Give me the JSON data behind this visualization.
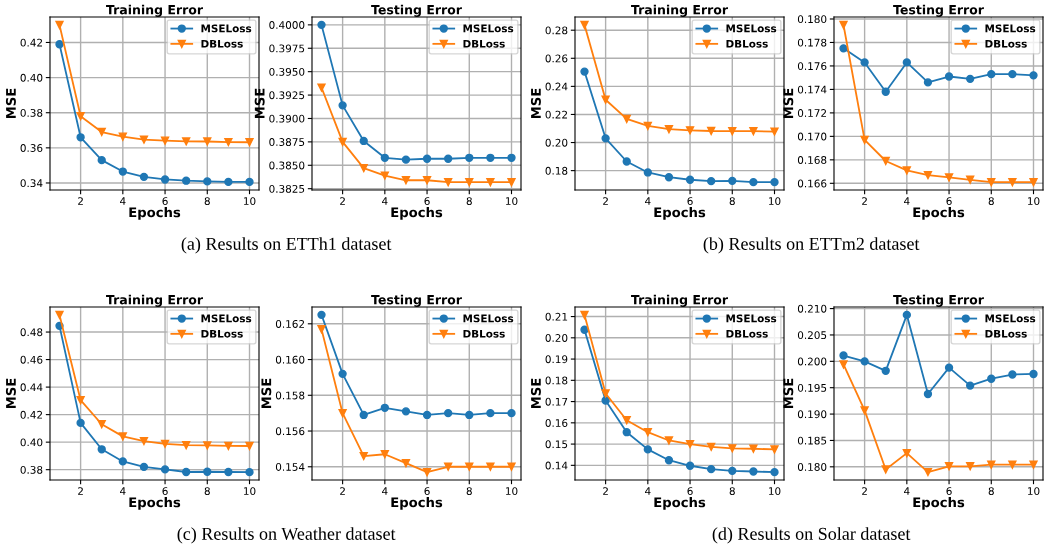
{
  "chart_data": [
    {
      "type": "line",
      "title": "Training Error",
      "xlabel": "Epochs",
      "ylabel": "MSE",
      "x": [
        1,
        2,
        3,
        4,
        5,
        6,
        7,
        8,
        9,
        10
      ],
      "xlim": [
        0.55,
        10.45
      ],
      "xticks": [
        2,
        4,
        6,
        8,
        10
      ],
      "ylim": [
        0.336,
        0.4345
      ],
      "yticks": [
        {
          "value": 0.34,
          "label": "0.34"
        },
        {
          "value": 0.36,
          "label": "0.36"
        },
        {
          "value": 0.38,
          "label": "0.38"
        },
        {
          "value": 0.4,
          "label": "0.40"
        },
        {
          "value": 0.42,
          "label": "0.42"
        }
      ],
      "grid": true,
      "legend": "top right",
      "annotations": [
        "(a) Results on ETTh1 dataset"
      ],
      "series": [
        {
          "name": "MSELoss",
          "color": "#1f77b4",
          "marker": "circle",
          "values": [
            0.419,
            0.366,
            0.353,
            0.3465,
            0.3435,
            0.342,
            0.3413,
            0.3409,
            0.3406,
            0.3406
          ]
        },
        {
          "name": "DBLoss",
          "color": "#ff7f0e",
          "marker": "triangle",
          "values": [
            0.43,
            0.378,
            0.369,
            0.3664,
            0.3647,
            0.3641,
            0.3637,
            0.3636,
            0.3633,
            0.3632
          ]
        }
      ]
    },
    {
      "type": "line",
      "title": "Testing Error",
      "xlabel": "Epochs",
      "ylabel": "MSE",
      "x": [
        1,
        2,
        3,
        4,
        5,
        6,
        7,
        8,
        9,
        10
      ],
      "xlim": [
        0.55,
        10.45
      ],
      "xticks": [
        2,
        4,
        6,
        8,
        10
      ],
      "ylim": [
        0.38236,
        0.40084
      ],
      "yticks": [
        {
          "value": 0.3825,
          "label": "0.3825"
        },
        {
          "value": 0.385,
          "label": "0.3850"
        },
        {
          "value": 0.3875,
          "label": "0.3875"
        },
        {
          "value": 0.39,
          "label": "0.3900"
        },
        {
          "value": 0.3925,
          "label": "0.3925"
        },
        {
          "value": 0.395,
          "label": "0.3950"
        },
        {
          "value": 0.3975,
          "label": "0.3975"
        },
        {
          "value": 0.4,
          "label": "0.4000"
        }
      ],
      "grid": true,
      "legend": "top right",
      "series": [
        {
          "name": "MSELoss",
          "color": "#1f77b4",
          "marker": "circle",
          "values": [
            0.4,
            0.3914,
            0.3876,
            0.3858,
            0.3856,
            0.3857,
            0.3857,
            0.3858,
            0.3858,
            0.3858
          ]
        },
        {
          "name": "DBLoss",
          "color": "#ff7f0e",
          "marker": "triangle",
          "values": [
            0.3933,
            0.3875,
            0.3847,
            0.3839,
            0.3834,
            0.3834,
            0.3832,
            0.3832,
            0.3832,
            0.3832
          ]
        }
      ]
    },
    {
      "type": "line",
      "title": "Training Error",
      "xlabel": "Epochs",
      "ylabel": "MSE",
      "x": [
        1,
        2,
        3,
        4,
        5,
        6,
        7,
        8,
        9,
        10
      ],
      "xlim": [
        0.55,
        10.45
      ],
      "xticks": [
        2,
        4,
        6,
        8,
        10
      ],
      "ylim": [
        0.1662,
        0.2894
      ],
      "yticks": [
        {
          "value": 0.18,
          "label": "0.18"
        },
        {
          "value": 0.2,
          "label": "0.20"
        },
        {
          "value": 0.22,
          "label": "0.22"
        },
        {
          "value": 0.24,
          "label": "0.24"
        },
        {
          "value": 0.26,
          "label": "0.26"
        },
        {
          "value": 0.28,
          "label": "0.28"
        }
      ],
      "grid": true,
      "legend": "top right",
      "annotations": [
        "(b) Results on ETTm2 dataset"
      ],
      "series": [
        {
          "name": "MSELoss",
          "color": "#1f77b4",
          "marker": "circle",
          "values": [
            0.2505,
            0.203,
            0.1865,
            0.1787,
            0.1753,
            0.1735,
            0.1725,
            0.1727,
            0.1718,
            0.1718
          ]
        },
        {
          "name": "DBLoss",
          "color": "#ff7f0e",
          "marker": "triangle",
          "values": [
            0.2838,
            0.2305,
            0.2168,
            0.2118,
            0.2095,
            0.2087,
            0.2082,
            0.2081,
            0.2081,
            0.2078
          ]
        }
      ]
    },
    {
      "type": "line",
      "title": "Testing Error",
      "xlabel": "Epochs",
      "ylabel": "MSE",
      "x": [
        1,
        2,
        3,
        4,
        5,
        6,
        7,
        8,
        9,
        10
      ],
      "xlim": [
        0.55,
        10.45
      ],
      "xticks": [
        2,
        4,
        6,
        8,
        10
      ],
      "ylim": [
        0.16543,
        0.18017
      ],
      "yticks": [
        {
          "value": 0.166,
          "label": "0.166"
        },
        {
          "value": 0.168,
          "label": "0.168"
        },
        {
          "value": 0.17,
          "label": "0.170"
        },
        {
          "value": 0.172,
          "label": "0.172"
        },
        {
          "value": 0.174,
          "label": "0.174"
        },
        {
          "value": 0.176,
          "label": "0.176"
        },
        {
          "value": 0.178,
          "label": "0.178"
        },
        {
          "value": 0.18,
          "label": "0.180"
        }
      ],
      "grid": true,
      "legend": "top right",
      "series": [
        {
          "name": "MSELoss",
          "color": "#1f77b4",
          "marker": "circle",
          "values": [
            0.1775,
            0.1763,
            0.1738,
            0.1763,
            0.1746,
            0.1751,
            0.1749,
            0.1753,
            0.1753,
            0.1752
          ]
        },
        {
          "name": "DBLoss",
          "color": "#ff7f0e",
          "marker": "triangle",
          "values": [
            0.1795,
            0.1697,
            0.1679,
            0.1671,
            0.1667,
            0.1665,
            0.1663,
            0.1661,
            0.1661,
            0.1661
          ]
        }
      ]
    },
    {
      "type": "line",
      "title": "Training Error",
      "xlabel": "Epochs",
      "ylabel": "MSE",
      "x": [
        1,
        2,
        3,
        4,
        5,
        6,
        7,
        8,
        9,
        10
      ],
      "xlim": [
        0.55,
        10.45
      ],
      "xticks": [
        2,
        4,
        6,
        8,
        10
      ],
      "ylim": [
        0.3725,
        0.4982
      ],
      "yticks": [
        {
          "value": 0.38,
          "label": "0.38"
        },
        {
          "value": 0.4,
          "label": "0.40"
        },
        {
          "value": 0.42,
          "label": "0.42"
        },
        {
          "value": 0.44,
          "label": "0.44"
        },
        {
          "value": 0.46,
          "label": "0.46"
        },
        {
          "value": 0.48,
          "label": "0.48"
        }
      ],
      "grid": true,
      "legend": "top right",
      "annotations": [
        "(c) Results on Weather dataset"
      ],
      "series": [
        {
          "name": "MSELoss",
          "color": "#1f77b4",
          "marker": "circle",
          "values": [
            0.4845,
            0.414,
            0.3948,
            0.386,
            0.382,
            0.3802,
            0.3783,
            0.3785,
            0.3783,
            0.3782
          ]
        },
        {
          "name": "DBLoss",
          "color": "#ff7f0e",
          "marker": "triangle",
          "values": [
            0.4925,
            0.4305,
            0.413,
            0.4042,
            0.4008,
            0.3988,
            0.3978,
            0.3976,
            0.3973,
            0.3972
          ]
        }
      ]
    },
    {
      "type": "line",
      "title": "Testing Error",
      "xlabel": "Epochs",
      "ylabel": "MSE",
      "x": [
        1,
        2,
        3,
        4,
        5,
        6,
        7,
        8,
        9,
        10
      ],
      "xlim": [
        0.55,
        10.45
      ],
      "xticks": [
        2,
        4,
        6,
        8,
        10
      ],
      "ylim": [
        0.15326,
        0.16294
      ],
      "yticks": [
        {
          "value": 0.154,
          "label": "0.154"
        },
        {
          "value": 0.156,
          "label": "0.156"
        },
        {
          "value": 0.158,
          "label": "0.158"
        },
        {
          "value": 0.16,
          "label": "0.160"
        },
        {
          "value": 0.162,
          "label": "0.162"
        }
      ],
      "grid": true,
      "legend": "top right",
      "series": [
        {
          "name": "MSELoss",
          "color": "#1f77b4",
          "marker": "circle",
          "values": [
            0.1625,
            0.1592,
            0.1569,
            0.1573,
            0.1571,
            0.1569,
            0.157,
            0.1569,
            0.157,
            0.157
          ]
        },
        {
          "name": "DBLoss",
          "color": "#ff7f0e",
          "marker": "triangle",
          "values": [
            0.1617,
            0.157,
            0.1546,
            0.1547,
            0.1542,
            0.1537,
            0.154,
            0.154,
            0.154,
            0.154
          ]
        }
      ]
    },
    {
      "type": "line",
      "title": "Training Error",
      "xlabel": "Epochs",
      "ylabel": "MSE",
      "x": [
        1,
        2,
        3,
        4,
        5,
        6,
        7,
        8,
        9,
        10
      ],
      "xlim": [
        0.55,
        10.45
      ],
      "xticks": [
        2,
        4,
        6,
        8,
        10
      ],
      "ylim": [
        0.1331,
        0.2145
      ],
      "yticks": [
        {
          "value": 0.14,
          "label": "0.14"
        },
        {
          "value": 0.15,
          "label": "0.15"
        },
        {
          "value": 0.16,
          "label": "0.16"
        },
        {
          "value": 0.17,
          "label": "0.17"
        },
        {
          "value": 0.18,
          "label": "0.18"
        },
        {
          "value": 0.19,
          "label": "0.19"
        },
        {
          "value": 0.2,
          "label": "0.20"
        },
        {
          "value": 0.21,
          "label": "0.21"
        }
      ],
      "grid": true,
      "legend": "top right",
      "annotations": [
        "(d) Results on Solar dataset"
      ],
      "series": [
        {
          "name": "MSELoss",
          "color": "#1f77b4",
          "marker": "circle",
          "values": [
            0.2038,
            0.1705,
            0.1556,
            0.1475,
            0.1424,
            0.1398,
            0.1382,
            0.1374,
            0.1371,
            0.1368
          ]
        },
        {
          "name": "DBLoss",
          "color": "#ff7f0e",
          "marker": "triangle",
          "values": [
            0.2108,
            0.1738,
            0.1612,
            0.1556,
            0.1517,
            0.15,
            0.1487,
            0.148,
            0.1478,
            0.1475
          ]
        }
      ]
    },
    {
      "type": "line",
      "title": "Testing Error",
      "xlabel": "Epochs",
      "ylabel": "MSE",
      "x": [
        1,
        2,
        3,
        4,
        5,
        6,
        7,
        8,
        9,
        10
      ],
      "xlim": [
        0.55,
        10.45
      ],
      "xticks": [
        2,
        4,
        6,
        8,
        10
      ],
      "ylim": [
        0.1775,
        0.2103
      ],
      "yticks": [
        {
          "value": 0.18,
          "label": "0.180"
        },
        {
          "value": 0.185,
          "label": "0.185"
        },
        {
          "value": 0.19,
          "label": "0.190"
        },
        {
          "value": 0.195,
          "label": "0.195"
        },
        {
          "value": 0.2,
          "label": "0.200"
        },
        {
          "value": 0.205,
          "label": "0.205"
        },
        {
          "value": 0.21,
          "label": "0.210"
        }
      ],
      "grid": true,
      "legend": "top right",
      "series": [
        {
          "name": "MSELoss",
          "color": "#1f77b4",
          "marker": "circle",
          "values": [
            0.2011,
            0.2,
            0.1982,
            0.2088,
            0.1938,
            0.1988,
            0.1954,
            0.1967,
            0.1975,
            0.1976
          ]
        },
        {
          "name": "DBLoss",
          "color": "#ff7f0e",
          "marker": "triangle",
          "values": [
            0.1994,
            0.1907,
            0.1795,
            0.1826,
            0.179,
            0.1801,
            0.1801,
            0.1804,
            0.1804,
            0.1804
          ]
        }
      ]
    }
  ]
}
